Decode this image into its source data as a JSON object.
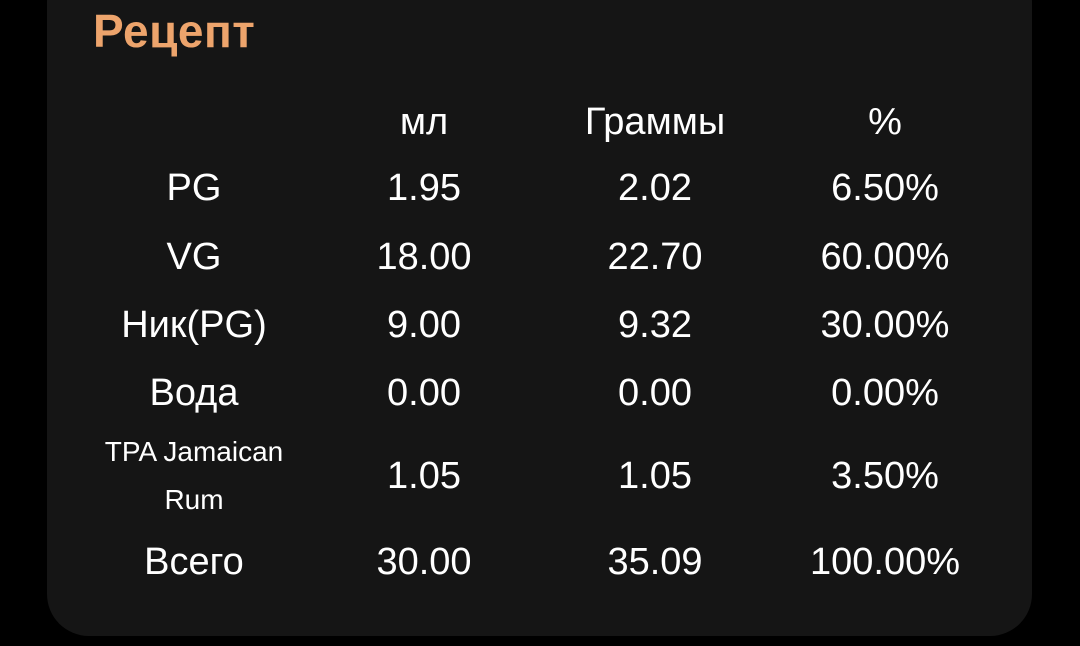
{
  "title": "Рецепт",
  "accent_color": "#eda46c",
  "table": {
    "headers": [
      "",
      "мл",
      "Граммы",
      "%"
    ],
    "rows": [
      {
        "name": "PG",
        "ml": "1.95",
        "grams": "2.02",
        "percent": "6.50%"
      },
      {
        "name": "VG",
        "ml": "18.00",
        "grams": "22.70",
        "percent": "60.00%"
      },
      {
        "name": "Ник(PG)",
        "ml": "9.00",
        "grams": "9.32",
        "percent": "30.00%"
      },
      {
        "name": "Вода",
        "ml": "0.00",
        "grams": "0.00",
        "percent": "0.00%"
      },
      {
        "name": "TPA Jamaican Rum",
        "ml": "1.05",
        "grams": "1.05",
        "percent": "3.50%"
      },
      {
        "name": "Всего",
        "ml": "30.00",
        "grams": "35.09",
        "percent": "100.00%"
      }
    ]
  }
}
